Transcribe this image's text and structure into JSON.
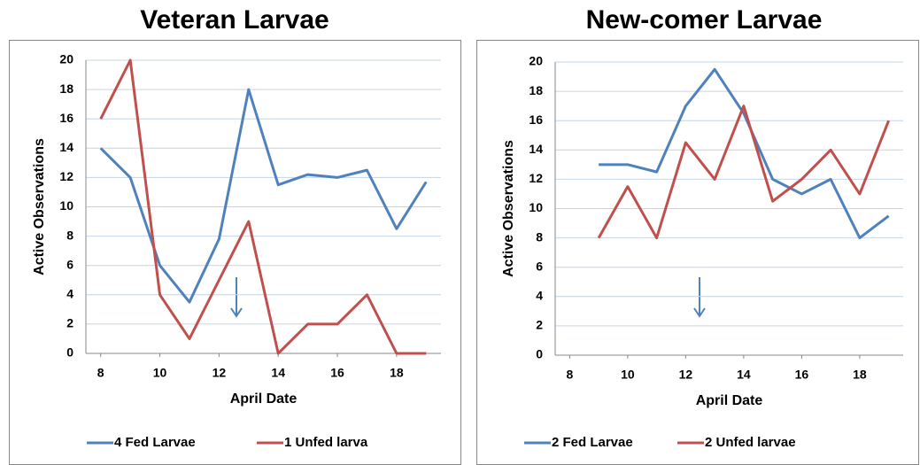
{
  "chart_data": [
    {
      "type": "line",
      "title": "Veteran Larvae",
      "xlabel": "April Date",
      "ylabel": "Active Observations",
      "x": [
        8,
        9,
        10,
        11,
        12,
        13,
        14,
        15,
        16,
        17,
        18,
        19
      ],
      "series": [
        {
          "name": "4 Fed Larvae",
          "color": "#4f81bd",
          "values": [
            14,
            12,
            6,
            3.5,
            7.8,
            18,
            11.5,
            12.2,
            12,
            12.5,
            8.5,
            11.7
          ]
        },
        {
          "name": "1 Unfed larva",
          "color": "#c0504d",
          "values": [
            16,
            20,
            4,
            1,
            5,
            9,
            0,
            2,
            2,
            4,
            0,
            0
          ]
        }
      ],
      "xlim": [
        7.5,
        19.5
      ],
      "xticks": [
        8,
        10,
        12,
        14,
        16,
        18
      ],
      "ylim": [
        0,
        20
      ],
      "yticks": [
        0,
        2,
        4,
        6,
        8,
        10,
        12,
        14,
        16,
        18,
        20
      ],
      "grid": true,
      "legend": "bottom"
    },
    {
      "type": "line",
      "title": "New-comer Larvae",
      "xlabel": "April Date",
      "ylabel": "Active Observations",
      "x": [
        9,
        10,
        11,
        12,
        13,
        14,
        15,
        16,
        17,
        18,
        19
      ],
      "series": [
        {
          "name": "2 Fed Larvae",
          "color": "#4f81bd",
          "values": [
            13,
            13,
            12.5,
            17,
            19.5,
            16.5,
            12,
            11,
            12,
            8,
            9.5
          ]
        },
        {
          "name": "2 Unfed larvae",
          "color": "#c0504d",
          "values": [
            8,
            11.5,
            8,
            14.5,
            12,
            17,
            10.5,
            12,
            14,
            11,
            16
          ]
        }
      ],
      "xlim": [
        7.5,
        19.5
      ],
      "xticks": [
        8,
        10,
        12,
        14,
        16,
        18
      ],
      "ylim": [
        0,
        20
      ],
      "yticks": [
        0,
        2,
        4,
        6,
        8,
        10,
        12,
        14,
        16,
        18,
        20
      ],
      "grid": true,
      "legend": "bottom"
    }
  ]
}
